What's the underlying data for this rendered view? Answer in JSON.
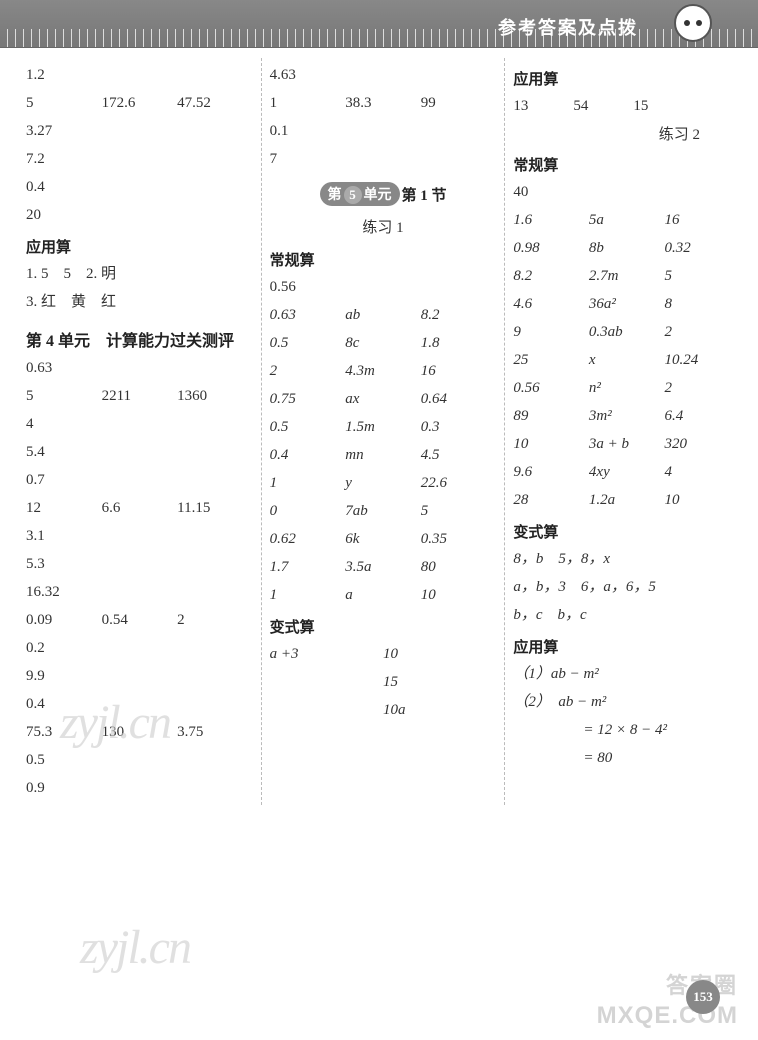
{
  "header": {
    "title": "参考答案及点拨"
  },
  "col1": {
    "l1": "1.2",
    "r1": [
      "5",
      "172.6",
      "47.52"
    ],
    "l2": "3.27",
    "l3": "7.2",
    "l4": "0.4",
    "l5": "20",
    "appHeading": "应用算",
    "a1": "1. 5　5　2. 明",
    "a2": "3. 红　黄　红",
    "unit4": "第 4 单元　计算能力过关测评",
    "u1": "0.63",
    "ur1": [
      "5",
      "2211",
      "1360"
    ],
    "u2": "4",
    "u3": "5.4",
    "u4": "0.7",
    "ur2": [
      "12",
      "6.6",
      "11.15"
    ],
    "u5": "3.1",
    "u6": "5.3",
    "u7": "16.32",
    "ur3": [
      "0.09",
      "0.54",
      "2"
    ],
    "u8": "0.2",
    "u9": "9.9",
    "u10": "0.4",
    "ur4": [
      "75.3",
      "130",
      "3.75"
    ],
    "u11": "0.5",
    "u12": "0.9"
  },
  "col2": {
    "l1": "4.63",
    "r1": [
      "1",
      "38.3",
      "99"
    ],
    "l2": "0.1",
    "l3": "7",
    "unit5badge": {
      "prefix": "第",
      "num": "5",
      "mid": "单元",
      "suffix": "第 1 节"
    },
    "practice1": "练习 1",
    "heading1": "常规算",
    "cg1": "0.56",
    "tbl1": [
      [
        "0.63",
        "ab",
        "8.2"
      ],
      [
        "0.5",
        "8c",
        "1.8"
      ],
      [
        "2",
        "4.3m",
        "16"
      ],
      [
        "0.75",
        "ax",
        "0.64"
      ],
      [
        "0.5",
        "1.5m",
        "0.3"
      ],
      [
        "0.4",
        "mn",
        "4.5"
      ],
      [
        "1",
        "y",
        "22.6"
      ],
      [
        "0",
        "7ab",
        "5"
      ],
      [
        "0.62",
        "6k",
        "0.35"
      ],
      [
        "1.7",
        "3.5a",
        "80"
      ],
      [
        "1",
        "a",
        "10"
      ]
    ],
    "heading2": "变式算",
    "tbl2": [
      [
        "a +3",
        "10"
      ],
      [
        "",
        "15"
      ],
      [
        "",
        "10a"
      ]
    ]
  },
  "col3": {
    "appHeading": "应用算",
    "r1": [
      "13",
      "54",
      "15"
    ],
    "practice2": "练习 2",
    "heading1": "常规算",
    "cg1": "40",
    "tbl1": [
      [
        "1.6",
        "5a",
        "16"
      ],
      [
        "0.98",
        "8b",
        "0.32"
      ],
      [
        "8.2",
        "2.7m",
        "5"
      ],
      [
        "4.6",
        "36a²",
        "8"
      ],
      [
        "9",
        "0.3ab",
        "2"
      ],
      [
        "25",
        "x",
        "10.24"
      ],
      [
        "0.56",
        "n²",
        "2"
      ],
      [
        "89",
        "3m²",
        "6.4"
      ],
      [
        "10",
        "3a + b",
        "320"
      ],
      [
        "9.6",
        "4xy",
        "4"
      ],
      [
        "28",
        "1.2a",
        "10"
      ]
    ],
    "heading2": "变式算",
    "b1": "8，b　5，8，x",
    "b2": "a，b，3　6，a，6，5",
    "b3": "b，c　b，c",
    "appHeading2": "应用算",
    "e1": "（1）ab − m²",
    "e2": "（2）　ab − m²",
    "e3": "= 12 × 8 − 4²",
    "e4": "= 80"
  },
  "watermark": "zyjl.cn",
  "footer": {
    "brand1": "答案圈",
    "brand2": "MXQE.COM",
    "page": "153"
  }
}
